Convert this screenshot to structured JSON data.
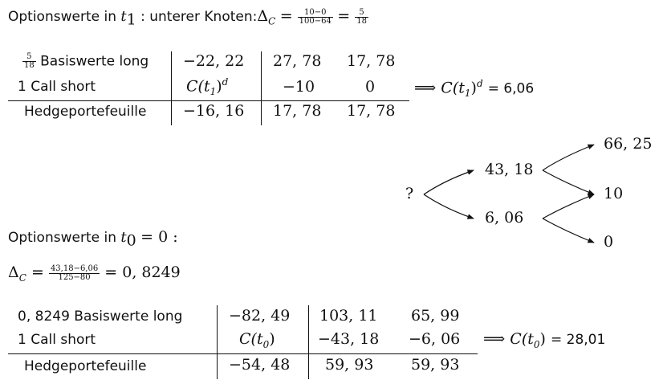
{
  "section1": {
    "heading_prefix": "Optionswerte in",
    "heading_var": "t",
    "heading_sub": "1",
    "heading_mid": ": unterer Knoten:",
    "delta_symbol": "Δ",
    "delta_sub": "C",
    "frac1_num": "10−0",
    "frac1_den": "100−64",
    "frac2_num": "5",
    "frac2_den": "18"
  },
  "table1": {
    "rows": [
      {
        "label_frac_num": "5",
        "label_frac_den": "18",
        "label": "Basiswerte long",
        "c1": "−22, 22",
        "c2": "27, 78",
        "c3": "17, 78"
      },
      {
        "label": "1 Call short",
        "c1_base": "C(t",
        "c1_sub": "1",
        "c1_end": ")",
        "c1_sup": "d",
        "c2": "−10",
        "c3": "0"
      },
      {
        "label": "Hedgeportefeuille",
        "c1": "−16, 16",
        "c2": "17, 78",
        "c3": "17, 78"
      }
    ],
    "result_arrow": "⟹",
    "result_lhs": "C(t",
    "result_sub": "1",
    "result_end": ")",
    "result_sup": "d",
    "result_eq": "= 6,06"
  },
  "tree": {
    "root": "?",
    "up": "43, 18",
    "down": "6, 06",
    "uu": "66, 25",
    "ud": "10",
    "dd": "0"
  },
  "section2": {
    "heading_prefix": "Optionswerte in",
    "heading_var": "t",
    "heading_sub": "0",
    "heading_end": "= 0 :",
    "delta_symbol": "Δ",
    "delta_sub": "C",
    "frac_num": "43,18−6,06",
    "frac_den": "125−80",
    "delta_result": "= 0, 8249"
  },
  "table2": {
    "rows": [
      {
        "label": "0, 8249 Basiswerte long",
        "c1": "−82, 49",
        "c2": "103, 11",
        "c3": "65, 99"
      },
      {
        "label": "1 Call short",
        "c1_base": "C(t",
        "c1_sub": "0",
        "c1_end": ")",
        "c2": "−43, 18",
        "c3": "−6, 06"
      },
      {
        "label": "Hedgeportefeuille",
        "c1": "−54, 48",
        "c2": "59, 93",
        "c3": "59, 93"
      }
    ],
    "result_arrow": "⟹",
    "result_lhs": "C(t",
    "result_sub": "0",
    "result_end": ")",
    "result_eq": "= 28,01"
  }
}
